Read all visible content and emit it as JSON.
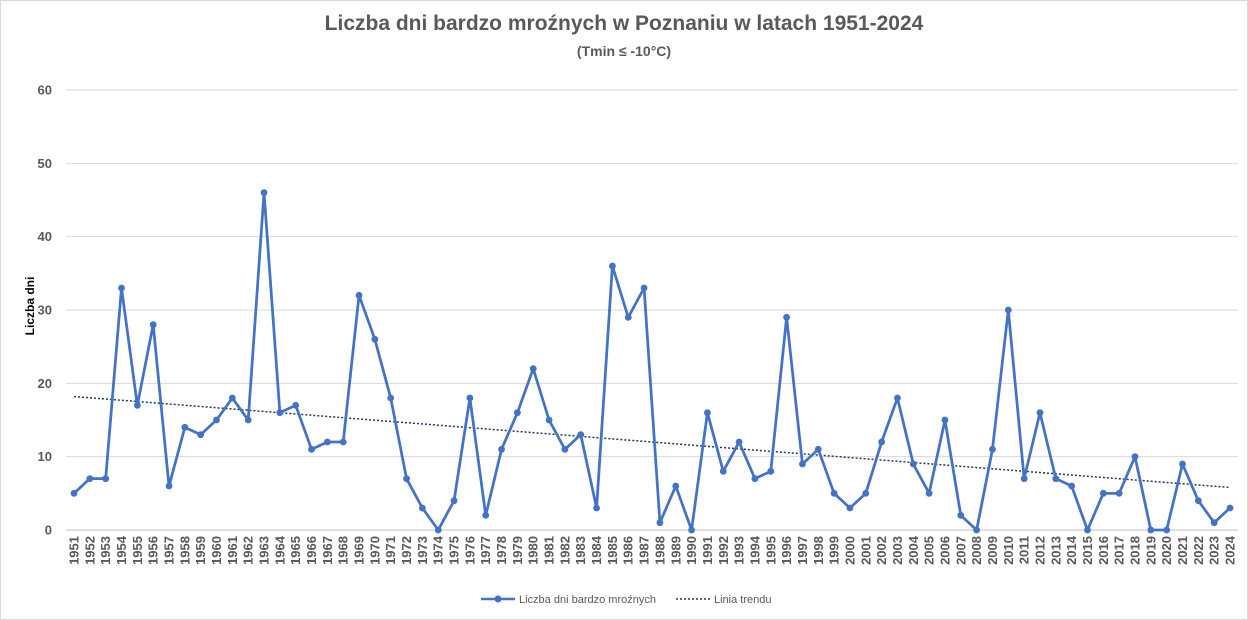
{
  "chart_data": {
    "type": "line",
    "title": "Liczba dni bardzo mroźnych w Poznaniu w latach 1951-2024",
    "subtitle": "(Tmin ≤ -10°C)",
    "xlabel": "",
    "ylabel": "Liczba dni",
    "ylim": [
      0,
      60
    ],
    "yticks": [
      0,
      10,
      20,
      30,
      40,
      50,
      60
    ],
    "grid": true,
    "legend_position": "bottom",
    "x": [
      1951,
      1952,
      1953,
      1954,
      1955,
      1956,
      1957,
      1958,
      1959,
      1960,
      1961,
      1962,
      1963,
      1964,
      1965,
      1966,
      1967,
      1968,
      1969,
      1970,
      1971,
      1972,
      1973,
      1974,
      1975,
      1976,
      1977,
      1978,
      1979,
      1980,
      1981,
      1982,
      1983,
      1984,
      1985,
      1986,
      1987,
      1988,
      1989,
      1990,
      1991,
      1992,
      1993,
      1994,
      1995,
      1996,
      1997,
      1998,
      1999,
      2000,
      2001,
      2002,
      2003,
      2004,
      2005,
      2006,
      2007,
      2008,
      2009,
      2010,
      2011,
      2012,
      2013,
      2014,
      2015,
      2016,
      2017,
      2018,
      2019,
      2020,
      2021,
      2022,
      2023,
      2024
    ],
    "series": [
      {
        "name": "Liczba dni bardzo mroźnych",
        "color": "#4472c4",
        "values": [
          5,
          7,
          7,
          33,
          17,
          28,
          6,
          14,
          13,
          15,
          18,
          15,
          46,
          16,
          17,
          11,
          12,
          12,
          32,
          26,
          18,
          7,
          3,
          0,
          4,
          18,
          2,
          11,
          16,
          22,
          15,
          11,
          13,
          3,
          36,
          29,
          33,
          1,
          6,
          0,
          16,
          8,
          12,
          7,
          8,
          29,
          9,
          11,
          5,
          3,
          5,
          12,
          18,
          9,
          5,
          15,
          2,
          0,
          11,
          30,
          7,
          16,
          7,
          6,
          0,
          5,
          5,
          10,
          0,
          0,
          9,
          4,
          1,
          3
        ]
      }
    ],
    "trendline": {
      "name": "Linia trendu",
      "color": "#1f3864",
      "start": 18.2,
      "end": 5.8
    }
  }
}
